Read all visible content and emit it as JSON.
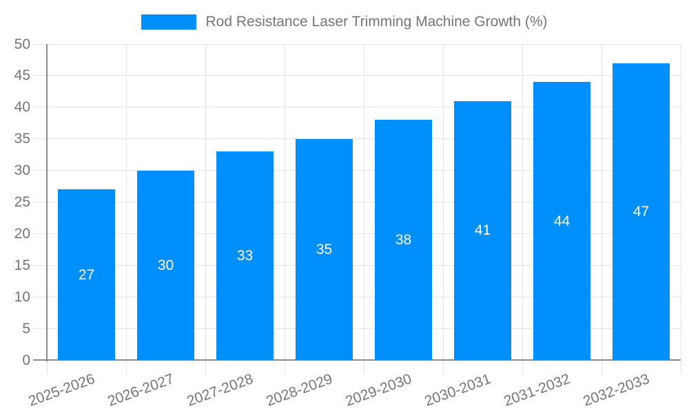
{
  "colors": {
    "bar": "#008FFB",
    "grid": "#e5e5e5",
    "axis": "#8b8b8b",
    "text": "#757575",
    "value_label": "#ffffff",
    "background": "#ffffff"
  },
  "legend": {
    "label": "Rod Resistance Laser Trimming Machine Growth (%)"
  },
  "chart_data": {
    "type": "bar",
    "title": "Rod Resistance Laser Trimming Machine Growth (%)",
    "categories": [
      "2025-2026",
      "2026-2027",
      "2027-2028",
      "2028-2029",
      "2029-2030",
      "2030-2031",
      "2031-2032",
      "2032-2033"
    ],
    "values": [
      27,
      30,
      33,
      35,
      38,
      41,
      44,
      47
    ],
    "xlabel": "",
    "ylabel": "",
    "ylim": [
      0,
      50
    ],
    "yticks": [
      0,
      5,
      10,
      15,
      20,
      25,
      30,
      35,
      40,
      45,
      50
    ],
    "grid": true,
    "legend_position": "top-center",
    "value_label_position": "inside-center",
    "x_label_rotation_deg": -20
  }
}
